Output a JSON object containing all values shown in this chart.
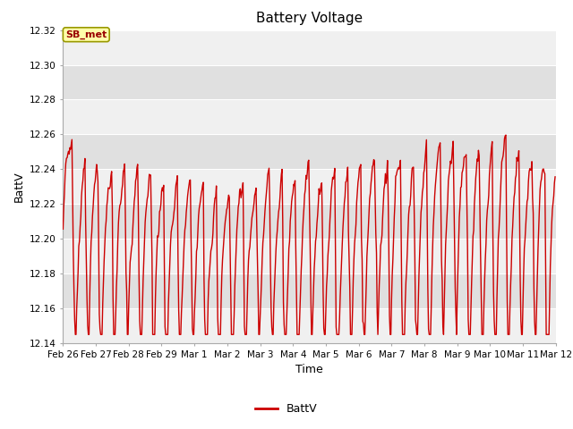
{
  "title": "Battery Voltage",
  "xlabel": "Time",
  "ylabel": "BattV",
  "ylim": [
    12.14,
    12.32
  ],
  "yticks": [
    12.14,
    12.16,
    12.18,
    12.2,
    12.22,
    12.24,
    12.26,
    12.28,
    12.3,
    12.32
  ],
  "date_labels": [
    "Feb 26",
    "Feb 27",
    "Feb 28",
    "Feb 29",
    "Mar 1",
    "Mar 2",
    "Mar 3",
    "Mar 4",
    "Mar 5",
    "Mar 6",
    "Mar 7",
    "Mar 8",
    "Mar 9",
    "Mar 10",
    "Mar 11",
    "Mar 12"
  ],
  "line_color": "#cc0000",
  "line_width": 1.0,
  "bg_color": "#ffffff",
  "plot_bg_light": "#f0f0f0",
  "plot_bg_dark": "#e0e0e0",
  "legend_label": "BattV",
  "annotation_text": "SB_met",
  "annotation_bg": "#ffffaa",
  "annotation_edge": "#999900",
  "title_fontsize": 11,
  "axis_fontsize": 9,
  "tick_fontsize": 7.5
}
